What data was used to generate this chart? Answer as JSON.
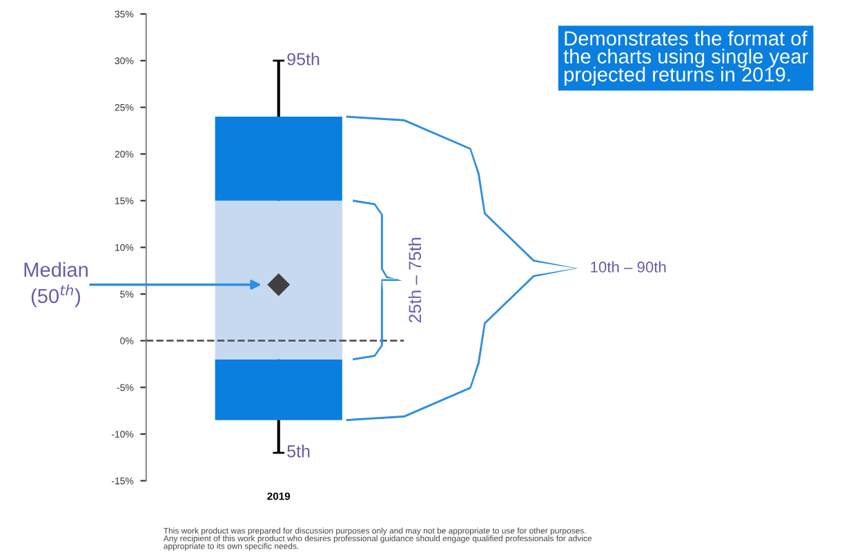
{
  "chart_data": {
    "type": "bar",
    "categories": [
      "2019"
    ],
    "series": [
      {
        "color": "#0a7fe0",
        "base": [
          -8.5
        ],
        "values": [
          6.5
        ]
      },
      {
        "color": "#c6d9f1",
        "base": [
          -2
        ],
        "values": [
          17
        ]
      },
      {
        "color": "#0a7fe0",
        "base": [
          15
        ],
        "values": [
          9
        ]
      },
      {
        "type": "scatter",
        "color": "#404040",
        "values": [
          6
        ],
        "errors": [
          [
            -12,
            30
          ]
        ]
      }
    ],
    "marker": "diamond",
    "ylim": [
      -15,
      35
    ],
    "yticks": [
      {
        "value": -15,
        "label": "-15%"
      },
      {
        "value": -10,
        "label": "-10%"
      },
      {
        "value": -5,
        "label": "-5%"
      },
      {
        "value": 0,
        "label": "0%"
      },
      {
        "value": 5,
        "label": "5%"
      },
      {
        "value": 10,
        "label": "10%"
      },
      {
        "value": 15,
        "label": "15%"
      },
      {
        "value": 20,
        "label": "20%"
      },
      {
        "value": 25,
        "label": "25%"
      },
      {
        "value": 30,
        "label": "30%"
      },
      {
        "value": 35,
        "label": "35%"
      }
    ],
    "ref_lines": [
      {
        "axis": "y",
        "value": 0,
        "color": "#555555",
        "line_style": "dashed"
      }
    ],
    "grid": false,
    "legend": false,
    "annotations": [
      {
        "text": "95th",
        "x": "2019",
        "y": 30
      },
      {
        "text": "5th",
        "x": "2019",
        "y": -12
      },
      "Median\n(50$^{th}$)",
      "25th – 75th",
      "10th – 90th",
      "Demonstrates the format of\nthe charts using single year\nprojected returns in 2019.",
      "This work product was prepared for discussion purposes only and may not be appropriate to use for other purposes.\nAny recipient of this work product who desires professional guidance should engage qualified professionals for advice\nappropriate to its own specific needs."
    ]
  }
}
